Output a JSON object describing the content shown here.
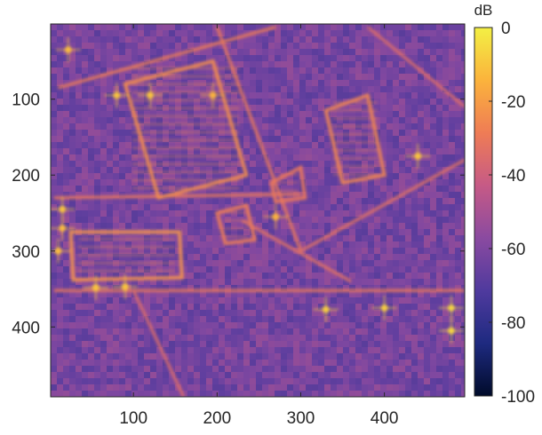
{
  "chart_data": {
    "type": "heatmap",
    "title": "",
    "xlabel": "",
    "ylabel": "",
    "xlim": [
      1,
      496
    ],
    "ylim": [
      1,
      492
    ],
    "y_direction": "reversed",
    "x_ticks": [
      100,
      200,
      300,
      400
    ],
    "y_ticks": [
      100,
      200,
      300,
      400
    ],
    "colorbar": {
      "title": "dB",
      "range": [
        -100,
        0
      ],
      "ticks": [
        0,
        -20,
        -40,
        -60,
        -80,
        -100
      ],
      "colormap": [
        "#000b2a",
        "#1e2a80",
        "#4f3a9e",
        "#8a4aa0",
        "#c65a86",
        "#ef7c55",
        "#fbb33c",
        "#f3f044"
      ]
    },
    "background_level_db": -62,
    "features": [
      {
        "label": "street",
        "kind": "line",
        "level_db": -30,
        "points": [
          [
            5,
            230
          ],
          [
            300,
            225
          ]
        ]
      },
      {
        "label": "street",
        "kind": "line",
        "level_db": -30,
        "points": [
          [
            5,
            352
          ],
          [
            496,
            352
          ]
        ]
      },
      {
        "label": "street",
        "kind": "line",
        "level_db": -28,
        "points": [
          [
            10,
            85
          ],
          [
            270,
            5
          ]
        ]
      },
      {
        "label": "street",
        "kind": "line",
        "level_db": -30,
        "points": [
          [
            200,
            5
          ],
          [
            300,
            300
          ]
        ]
      },
      {
        "label": "street",
        "kind": "line",
        "level_db": -32,
        "points": [
          [
            300,
            300
          ],
          [
            496,
            180
          ]
        ]
      },
      {
        "label": "street",
        "kind": "line",
        "level_db": -34,
        "points": [
          [
            100,
            352
          ],
          [
            160,
            492
          ]
        ]
      },
      {
        "label": "street",
        "kind": "line",
        "level_db": -32,
        "points": [
          [
            230,
            260
          ],
          [
            360,
            340
          ]
        ]
      },
      {
        "label": "street",
        "kind": "line",
        "level_db": -34,
        "points": [
          [
            380,
            5
          ],
          [
            496,
            110
          ]
        ]
      },
      {
        "label": "building",
        "kind": "polygon",
        "level_db": -24,
        "points": [
          [
            90,
            80
          ],
          [
            195,
            50
          ],
          [
            235,
            200
          ],
          [
            130,
            230
          ]
        ]
      },
      {
        "label": "building",
        "kind": "polygon",
        "level_db": -26,
        "points": [
          [
            330,
            115
          ],
          [
            380,
            95
          ],
          [
            400,
            200
          ],
          [
            350,
            210
          ]
        ]
      },
      {
        "label": "building",
        "kind": "polygon",
        "level_db": -22,
        "points": [
          [
            25,
            275
          ],
          [
            155,
            275
          ],
          [
            158,
            335
          ],
          [
            28,
            338
          ]
        ]
      },
      {
        "label": "building",
        "kind": "polygon",
        "level_db": -28,
        "points": [
          [
            200,
            250
          ],
          [
            235,
            240
          ],
          [
            245,
            285
          ],
          [
            210,
            290
          ]
        ]
      },
      {
        "label": "building",
        "kind": "polygon",
        "level_db": -30,
        "points": [
          [
            265,
            210
          ],
          [
            300,
            190
          ],
          [
            305,
            230
          ],
          [
            270,
            235
          ]
        ]
      },
      {
        "label": "point-target",
        "kind": "point",
        "level_db": -8,
        "points": [
          [
            330,
            377
          ]
        ]
      },
      {
        "label": "point-target",
        "kind": "point",
        "level_db": -8,
        "points": [
          [
            400,
            375
          ]
        ]
      },
      {
        "label": "point-target",
        "kind": "point",
        "level_db": -6,
        "points": [
          [
            480,
            375
          ]
        ]
      },
      {
        "label": "point-target",
        "kind": "point",
        "level_db": -6,
        "points": [
          [
            480,
            405
          ]
        ]
      },
      {
        "label": "point-target",
        "kind": "point",
        "level_db": -10,
        "points": [
          [
            440,
            175
          ]
        ]
      },
      {
        "label": "point-target",
        "kind": "point",
        "level_db": -10,
        "points": [
          [
            15,
            245
          ]
        ]
      },
      {
        "label": "point-target",
        "kind": "point",
        "level_db": -12,
        "points": [
          [
            15,
            270
          ]
        ]
      },
      {
        "label": "point-target",
        "kind": "point",
        "level_db": -10,
        "points": [
          [
            80,
            95
          ]
        ]
      },
      {
        "label": "point-target",
        "kind": "point",
        "level_db": -10,
        "points": [
          [
            120,
            95
          ]
        ]
      },
      {
        "label": "point-target",
        "kind": "point",
        "level_db": -14,
        "points": [
          [
            195,
            95
          ]
        ]
      },
      {
        "label": "point-target",
        "kind": "point",
        "level_db": -10,
        "points": [
          [
            55,
            348
          ]
        ]
      },
      {
        "label": "point-target",
        "kind": "point",
        "level_db": -10,
        "points": [
          [
            90,
            347
          ]
        ]
      },
      {
        "label": "point-target",
        "kind": "point",
        "level_db": -12,
        "points": [
          [
            10,
            300
          ]
        ]
      },
      {
        "label": "point-target",
        "kind": "point",
        "level_db": -12,
        "points": [
          [
            22,
            35
          ]
        ]
      },
      {
        "label": "point-target",
        "kind": "point",
        "level_db": -14,
        "points": [
          [
            270,
            255
          ]
        ]
      }
    ]
  }
}
